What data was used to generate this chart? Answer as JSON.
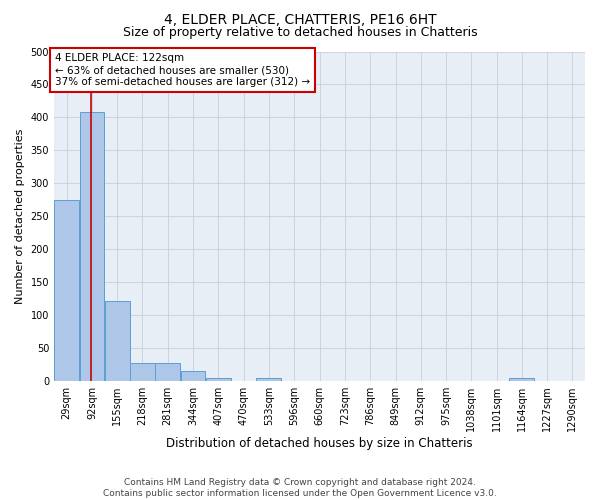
{
  "title1": "4, ELDER PLACE, CHATTERIS, PE16 6HT",
  "title2": "Size of property relative to detached houses in Chatteris",
  "xlabel": "Distribution of detached houses by size in Chatteris",
  "ylabel": "Number of detached properties",
  "bar_edges": [
    29,
    92,
    155,
    218,
    281,
    344,
    407,
    470,
    533,
    596,
    660,
    723,
    786,
    849,
    912,
    975,
    1038,
    1101,
    1164,
    1227,
    1290
  ],
  "bar_heights": [
    275,
    408,
    122,
    28,
    28,
    15,
    5,
    0,
    5,
    0,
    0,
    0,
    0,
    0,
    0,
    0,
    0,
    0,
    5,
    0,
    0
  ],
  "bar_color": "#aec6e8",
  "bar_edge_color": "#5a9fd4",
  "property_line_x": 122,
  "property_line_color": "#cc0000",
  "annotation_line1": "4 ELDER PLACE: 122sqm",
  "annotation_line2": "← 63% of detached houses are smaller (530)",
  "annotation_line3": "37% of semi-detached houses are larger (312) →",
  "annotation_box_color": "#ffffff",
  "annotation_box_edge": "#cc0000",
  "ylim": [
    0,
    500
  ],
  "yticks": [
    0,
    50,
    100,
    150,
    200,
    250,
    300,
    350,
    400,
    450,
    500
  ],
  "grid_color": "#c8d0da",
  "background_color": "#e8eef5",
  "footer_text": "Contains HM Land Registry data © Crown copyright and database right 2024.\nContains public sector information licensed under the Open Government Licence v3.0.",
  "title1_fontsize": 10,
  "title2_fontsize": 9,
  "xlabel_fontsize": 8.5,
  "ylabel_fontsize": 8,
  "tick_fontsize": 7,
  "annotation_fontsize": 7.5,
  "footer_fontsize": 6.5
}
